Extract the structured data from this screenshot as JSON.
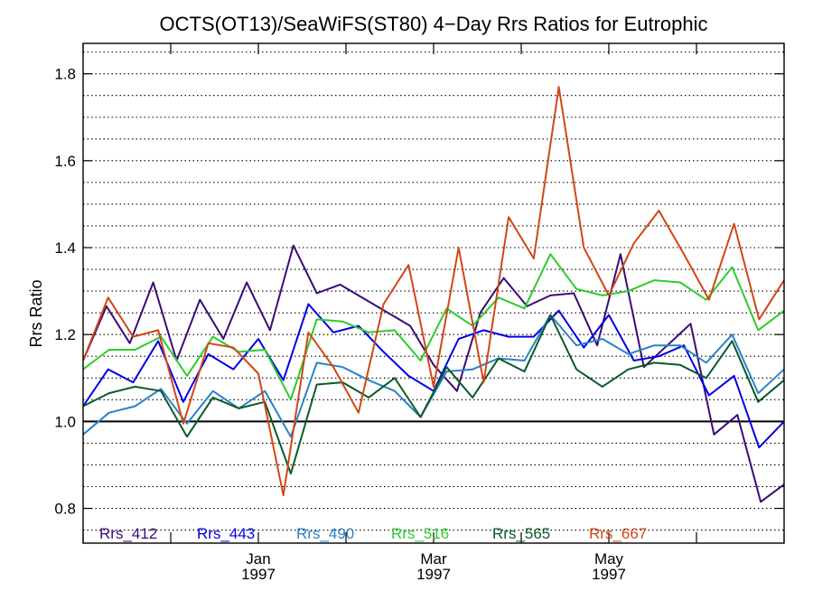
{
  "chart_data": {
    "type": "line",
    "title": "OCTS(OT13)/SeaWiFS(ST80) 4−Day Rrs Ratios for Eutrophic",
    "ylabel": "Rrs Ratio",
    "xlabel": "",
    "ylim": [
      0.72,
      1.87
    ],
    "y_ticks": [
      0.8,
      1.0,
      1.2,
      1.4,
      1.6,
      1.8
    ],
    "y_tick_labels": [
      "0.8",
      "1.0",
      "1.2",
      "1.4",
      "1.6",
      "1.8"
    ],
    "y_gridlines": [
      0.75,
      0.8,
      0.85,
      0.9,
      0.95,
      1.05,
      1.1,
      1.15,
      1.2,
      1.25,
      1.3,
      1.35,
      1.4,
      1.45,
      1.5,
      1.55,
      1.6,
      1.65,
      1.7,
      1.75,
      1.8,
      1.85
    ],
    "reference_line": 1.0,
    "x_ticks": [
      {
        "label": "Jan",
        "year": "1997"
      },
      {
        "label": "Mar",
        "year": "1997"
      },
      {
        "label": "May",
        "year": "1997"
      }
    ],
    "x_tick_labels": [
      "",
      "",
      "Jan",
      "",
      "Mar",
      "",
      "May",
      "",
      ""
    ],
    "x_count": 37,
    "legend_position": "bottom-left",
    "grid": true,
    "series": [
      {
        "name": "Rrs_412",
        "color": "#3c0a78",
        "values": [
          1.14,
          1.265,
          1.18,
          1.32,
          1.14,
          1.28,
          1.19,
          1.32,
          1.21,
          1.405,
          1.295,
          1.315,
          null,
          null,
          1.22,
          1.13,
          1.07,
          1.25,
          1.33,
          1.265,
          1.29,
          1.295,
          1.175,
          1.385,
          1.125,
          1.175,
          1.225,
          0.97,
          1.015,
          0.815,
          0.855
        ]
      },
      {
        "name": "Rrs_443",
        "color": "#0000e6",
        "values": [
          1.035,
          1.12,
          1.09,
          1.185,
          1.045,
          1.155,
          1.12,
          1.19,
          1.095,
          1.27,
          1.205,
          1.22,
          1.16,
          1.105,
          1.07,
          1.19,
          1.21,
          1.195,
          1.195,
          1.255,
          1.17,
          1.245,
          1.14,
          1.15,
          1.175,
          1.06,
          1.105,
          0.94,
          1.0
        ]
      },
      {
        "name": "Rrs_490",
        "color": "#2a82c8",
        "values": [
          0.97,
          1.02,
          1.035,
          1.075,
          0.995,
          1.07,
          1.03,
          1.07,
          0.965,
          1.135,
          1.125,
          1.095,
          1.07,
          1.01,
          1.115,
          1.12,
          1.145,
          1.14,
          1.245,
          1.175,
          1.19,
          1.155,
          1.175,
          1.175,
          1.135,
          1.2,
          1.065,
          1.12
        ]
      },
      {
        "name": "Rrs_516",
        "color": "#2ccc2c",
        "values": [
          1.12,
          1.165,
          1.165,
          1.195,
          1.105,
          1.195,
          1.16,
          1.165,
          1.05,
          1.235,
          1.23,
          1.205,
          1.21,
          1.14,
          1.26,
          1.22,
          1.285,
          1.26,
          1.385,
          1.305,
          1.29,
          1.3,
          1.325,
          1.32,
          1.28,
          1.355,
          1.21,
          1.255
        ]
      },
      {
        "name": "Rrs_565",
        "color": "#0a5a28",
        "values": [
          1.035,
          1.065,
          1.08,
          1.07,
          0.965,
          1.055,
          1.03,
          1.045,
          0.88,
          1.085,
          1.09,
          1.055,
          1.1,
          1.01,
          1.125,
          1.055,
          1.145,
          1.115,
          1.245,
          1.12,
          1.08,
          1.12,
          1.135,
          1.13,
          1.1,
          1.185,
          1.045,
          1.095
        ]
      },
      {
        "name": "Rrs_667",
        "color": "#d24614",
        "values": [
          1.14,
          1.285,
          1.195,
          1.21,
          0.995,
          1.18,
          1.17,
          1.11,
          0.83,
          1.205,
          1.125,
          1.02,
          1.27,
          1.36,
          1.08,
          1.4,
          1.09,
          1.47,
          1.375,
          1.77,
          1.4,
          1.29,
          1.41,
          1.485,
          1.385,
          1.28,
          1.455,
          1.235,
          1.325
        ]
      }
    ]
  }
}
